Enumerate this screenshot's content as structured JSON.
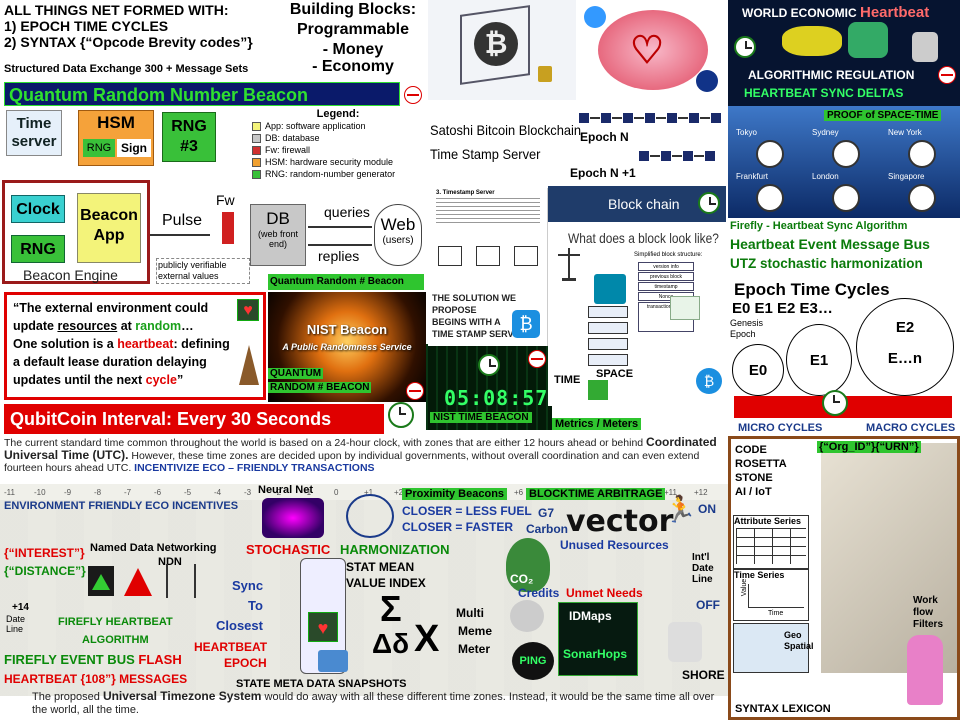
{
  "top_left": {
    "title_line": "ALL THINGS NET FORMED WITH:",
    "item1": "1)  EPOCH TIME CYCLES",
    "item2": "2)  SYNTAX {“Opcode Brevity codes”}",
    "structured": "Structured Data Exchange 300 + Message Sets"
  },
  "building_blocks": {
    "line1": "Building Blocks:",
    "line2": "Programmable",
    "line3": "- Money",
    "line4": "- Economy"
  },
  "qrnb_banner": "Quantum Random Number Beacon",
  "beacon_diagram": {
    "time_server": "Time server",
    "hsm": "HSM",
    "rng_box": "RNG",
    "sign_box": "Sign",
    "rng3": "RNG #3",
    "legend_title": "Legend:",
    "legend": [
      {
        "code": "App",
        "text": "software application",
        "color": "#f3f37a"
      },
      {
        "code": "DB",
        "text": "database",
        "color": "#c8c8c8"
      },
      {
        "code": "Fw",
        "text": "firewall",
        "color": "#d03030"
      },
      {
        "code": "HSM",
        "text": "hardware security module",
        "color": "#f0a030"
      },
      {
        "code": "RNG",
        "text": "random-number generator",
        "color": "#39c039"
      }
    ],
    "clock": "Clock",
    "beacon_app": "Beacon App",
    "rng": "RNG",
    "beacon_engine": "Beacon Engine",
    "pulse": "Pulse",
    "fw": "Fw",
    "db": "DB",
    "db_sub": "(web front end)",
    "queries": "queries",
    "replies": "replies",
    "web": "Web",
    "web_sub": "(users)",
    "public_note": "publicly verifiable external values",
    "qrb_label": "Quantum Random # Beacon"
  },
  "quote": {
    "text1": "“The external environment could",
    "text2a": "update ",
    "text2b": "resources",
    "text2c": " at ",
    "text2d": "random",
    "text2e": "…",
    "text3": "One solution is a ",
    "text3b": "heartbeat",
    "text3c": ": defining",
    "text4": "a default lease duration delaying",
    "text5": "updates until the next ",
    "text5b": "cycle",
    "text5c": "”"
  },
  "nist_beacon": {
    "title": "NIST Beacon",
    "subtitle": "A Public Randomness Service",
    "label1": "QUANTUM",
    "label2": "RANDOM # BEACON"
  },
  "nist_time": {
    "digits": "05:08:57",
    "label": "NIST TIME BEACON"
  },
  "qubitcoin": "QubitCoin Interval: Every 30 Seconds",
  "bitcoin_whitepaper": {
    "line1": "Satoshi Bitcoin Blockchain",
    "line2": "Time Stamp Server",
    "epoch_n": "Epoch N",
    "epoch_n1": "Epoch N +1",
    "paper_title": "3. Timestamp Server",
    "solution1": "THE SOLUTION WE PROPOSE",
    "solution2": "BEGINS WITH A",
    "solution3": "TIME STAMP SERVER"
  },
  "blockchain_slide": {
    "title": "Block chain",
    "question": "What does a block look like?",
    "simplified": "Simplified block structure:",
    "fields": [
      "version info",
      "previous block",
      "timestamp",
      "Nonce",
      "transaction's tree"
    ],
    "time": "TIME",
    "space": "SPACE",
    "metrics": "Metrics / Meters"
  },
  "world_econ": {
    "title1": "WORLD ECONOMIC",
    "title2": "Heartbeat",
    "alg1": "ALGORITHMIC REGULATION",
    "alg2": "HEARTBEAT SYNC DELTAS",
    "proof": "PROOF of SPACE-TIME",
    "cities": [
      "Tokyo",
      "Sydney",
      "New York",
      "Frankfurt",
      "London",
      "Singapore"
    ]
  },
  "firefly": {
    "line1": "Firefly - Heartbeat  Sync Algorithm",
    "line2": "Heartbeat Event Message Bus",
    "line3": "UTZ stochastic harmonization"
  },
  "epochs": {
    "title": "Epoch Time Cycles",
    "row": "E0 E1  E2  E3…",
    "genesis": "Genesis Epoch",
    "e0": "E0",
    "e1": "E1",
    "e2": "E2",
    "en": "E…n",
    "micro": "MICRO CYCLES",
    "macro": "MACRO CYCLES"
  },
  "utc_text": {
    "para1": "The current standard time common throughout the world is based on a 24-hour clock, with zones that are either 12 hours ahead or behind ",
    "para1b": "Coordinated Universal Time (UTC).",
    "para2": " However, these time zones are decided upon by individual governments, without overall coordination and can even extend fourteen hours ahead UTC.  ",
    "para2b": "INCENTIVIZE  ECO – FRIENDLY TRANSACTIONS",
    "footer1": "The proposed ",
    "footer1b": "Universal Timezone System",
    "footer1c": " would do away with all these different time zones. Instead, it would be the same time all over the world, all the time."
  },
  "map": {
    "tz_numbers": [
      "-11",
      "-10",
      "-9",
      "-8",
      "-7",
      "-6",
      "-5",
      "-4",
      "-3",
      "-2",
      "-1",
      "0",
      "+1",
      "+2",
      "+3",
      "+4",
      "+5",
      "+6",
      "+7",
      "+8",
      "+9",
      "+10",
      "+11",
      "+12",
      "-12",
      "+12"
    ],
    "env": "ENVIRONMENT  FRIENDLY ECO INCENTIVES",
    "neural": "Neural Net",
    "proximity": "Proximity Beacons",
    "closer1": "CLOSER = LESS FUEL",
    "closer2": "CLOSER =  FASTER",
    "arbitrage": "BLOCKTIME ARBITRAGE",
    "on": "ON",
    "interest": "{“INTEREST”}",
    "distance": "{“DISTANCE”}",
    "ndn1": "Named Data Networking",
    "ndn2": "NDN",
    "stochastic": "STOCHASTIC",
    "harmonization": "HARMONIZATION",
    "g7": "G7",
    "carbon": "Carbon",
    "vector": "vector",
    "unused": "Unused Resources",
    "sync1": "Sync",
    "sync2": "To",
    "sync3": "Closest",
    "stat1": "STAT MEAN",
    "stat2": "VALUE INDEX",
    "co2": "CO₂",
    "credits": "Credits",
    "unmet": "Unmet Needs",
    "intl": "Int'l Date Line",
    "off": "OFF",
    "firefly_hb": "FIREFLY  HEARTBEAT",
    "algorithm": "ALGORITHM",
    "heartbeat_epoch1": "HEARTBEAT",
    "heartbeat_epoch2": "EPOCH",
    "multi1": "Multi",
    "multi2": "Meme",
    "multi3": "Meter",
    "idmaps": "IDMaps",
    "sonar": "SonarHops",
    "ping": "PING",
    "shore": "SHORE",
    "date_line": "Date Line",
    "plus14": "+14",
    "event_bus1": "FIREFLY EVENT BUS ",
    "event_bus2": "FLASH",
    "heartbeat108": "HEARTBEAT {108”} MESSAGES",
    "snapshots": "STATE META DATA SNAPSHOTS",
    "sigma": "Σ",
    "delta": "Δδ"
  },
  "rosetta": {
    "org": "{“Org_ID”}{“URN”}",
    "code": "CODE",
    "rosetta": "ROSETTA",
    "stone": "STONE",
    "ai": "AI / IoT",
    "attr": "Attribute Series",
    "timeseries": "Time Series",
    "value": "Value",
    "time": "Time",
    "geo": "Geo Spatial",
    "work1": "Work",
    "work2": "flow",
    "work3": "Filters",
    "lexicon": "SYNTAX LEXICON"
  },
  "colors": {
    "green": "#2fc52f",
    "red": "#e00000",
    "navy": "#0a2a8a",
    "dark": "#0a1a30"
  }
}
